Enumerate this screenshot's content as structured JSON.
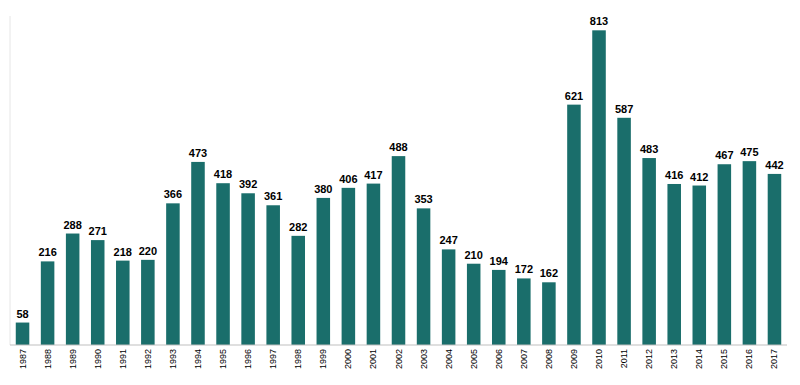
{
  "chart_data": {
    "type": "bar",
    "categories": [
      "1987",
      "1988",
      "1989",
      "1990",
      "1991",
      "1992",
      "1993",
      "1994",
      "1995",
      "1996",
      "1997",
      "1998",
      "1999",
      "2000",
      "2001",
      "2002",
      "2003",
      "2004",
      "2005",
      "2006",
      "2007",
      "2008",
      "2009",
      "2010",
      "2011",
      "2012",
      "2013",
      "2014",
      "2015",
      "2016",
      "2017"
    ],
    "values": [
      58,
      216,
      288,
      271,
      218,
      220,
      366,
      473,
      418,
      392,
      361,
      282,
      380,
      406,
      417,
      488,
      353,
      247,
      210,
      194,
      172,
      162,
      621,
      813,
      587,
      483,
      416,
      412,
      467,
      475,
      442
    ],
    "color": "#1a6e6b",
    "ylim": [
      0,
      850
    ],
    "yticks": [],
    "grid": false,
    "data_labels": true,
    "tick_labels": "x"
  }
}
